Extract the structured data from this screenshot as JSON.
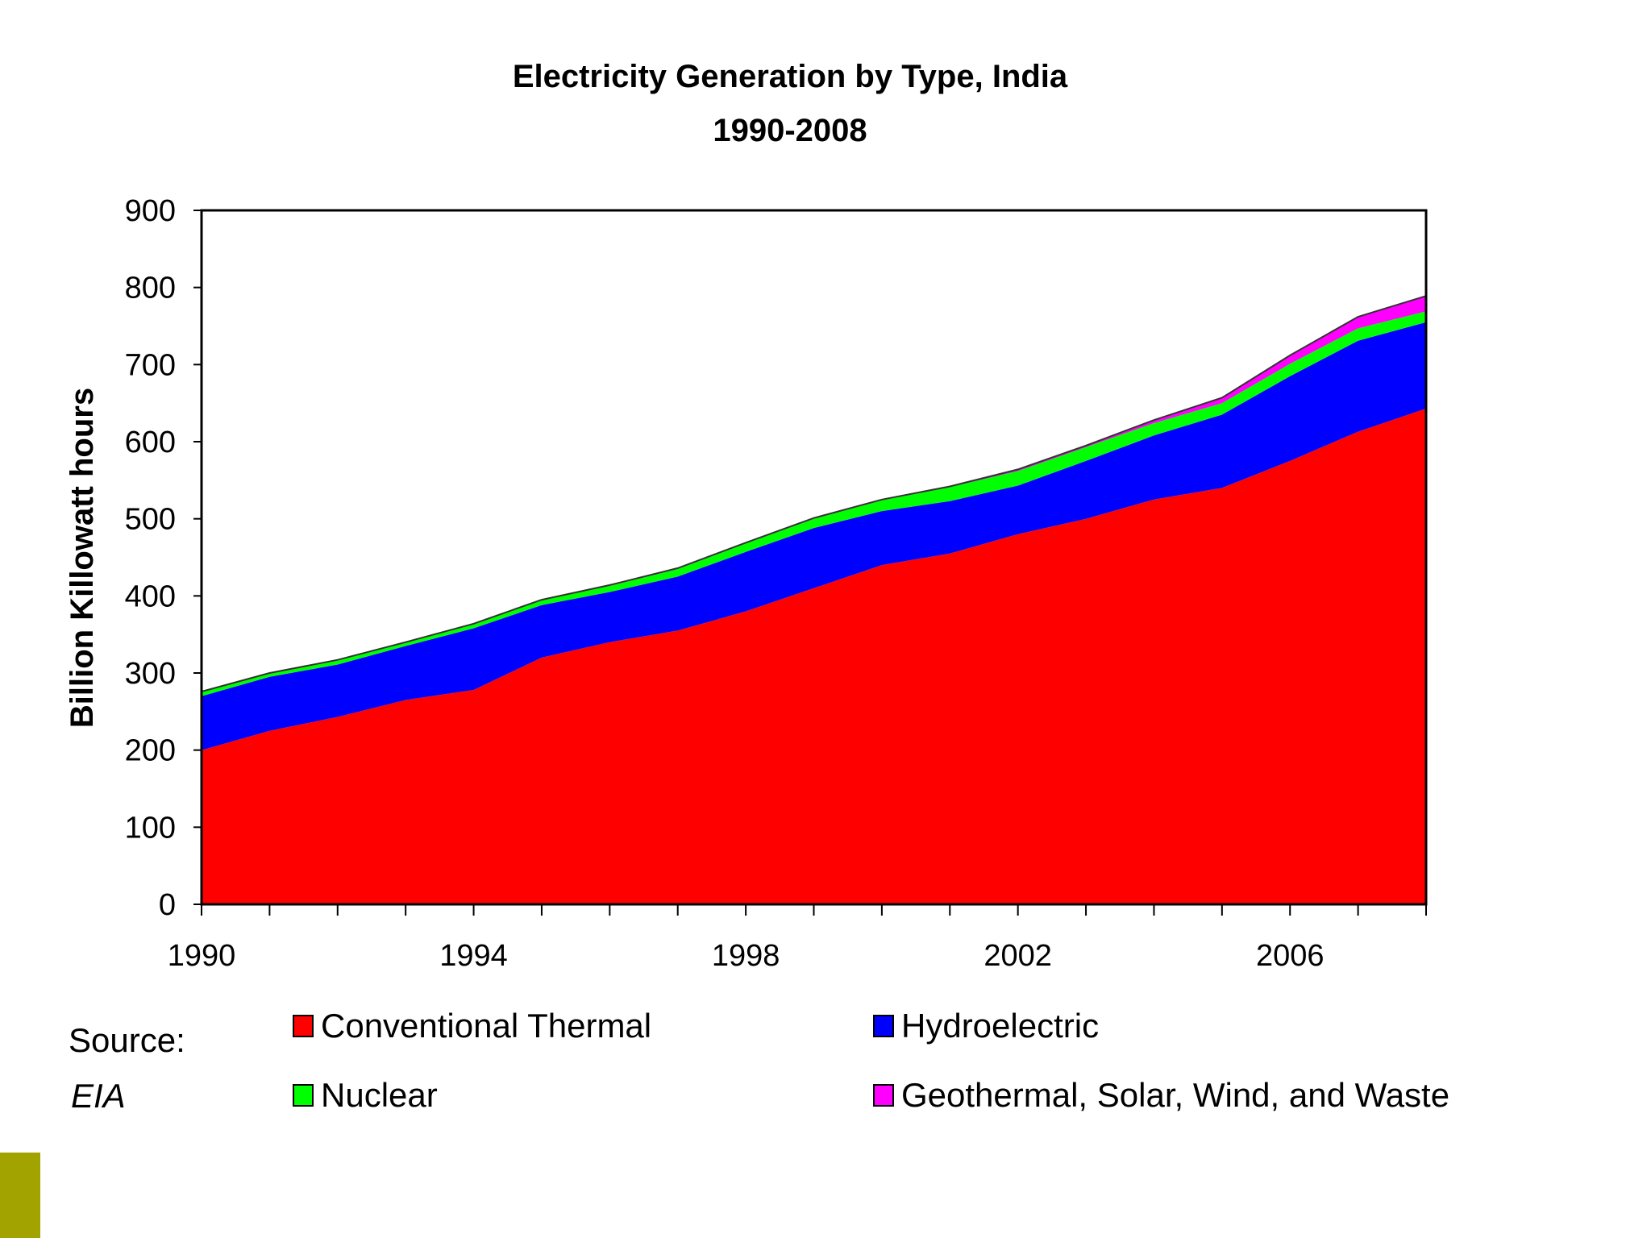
{
  "colors": {
    "thermal": "#ff0000",
    "hydro": "#0000ff",
    "nuclear": "#00ff00",
    "renewable": "#ff00ff",
    "accent": "#a3a300"
  },
  "source": {
    "label": "Source:",
    "value": "EIA"
  },
  "chart_data": {
    "type": "area",
    "stacked": true,
    "title": "Electricity Generation by Type, India",
    "subtitle": "1990-2008",
    "xlabel": "",
    "ylabel": "Billion Killowatt hours",
    "ylim": [
      0,
      900
    ],
    "xlim": [
      1990,
      2008
    ],
    "yticks": [
      0,
      100,
      200,
      300,
      400,
      500,
      600,
      700,
      800,
      900
    ],
    "xtick_labels": [
      1990,
      1994,
      1998,
      2002,
      2006
    ],
    "x": [
      1990,
      1991,
      1992,
      1993,
      1994,
      1995,
      1996,
      1997,
      1998,
      1999,
      2000,
      2001,
      2002,
      2003,
      2004,
      2005,
      2006,
      2007,
      2008
    ],
    "series": [
      {
        "name": "Conventional Thermal",
        "values": [
          200,
          225,
          243,
          265,
          278,
          320,
          340,
          355,
          380,
          410,
          440,
          455,
          480,
          500,
          525,
          540,
          575,
          613,
          643
        ]
      },
      {
        "name": "Hydroelectric",
        "values": [
          70,
          70,
          68,
          70,
          80,
          68,
          65,
          70,
          77,
          78,
          70,
          68,
          63,
          75,
          83,
          95,
          110,
          118,
          112
        ]
      },
      {
        "name": "Nuclear",
        "values": [
          6,
          5,
          6,
          5,
          6,
          7,
          8,
          10,
          11,
          12,
          14,
          18,
          19,
          18,
          16,
          15,
          16,
          16,
          14
        ]
      },
      {
        "name": "Geothermal, Solar, Wind, and Waste",
        "values": [
          0,
          0,
          0,
          0,
          0,
          0,
          1,
          1,
          1,
          1,
          1,
          1,
          2,
          2,
          4,
          7,
          11,
          15,
          20
        ]
      }
    ]
  }
}
